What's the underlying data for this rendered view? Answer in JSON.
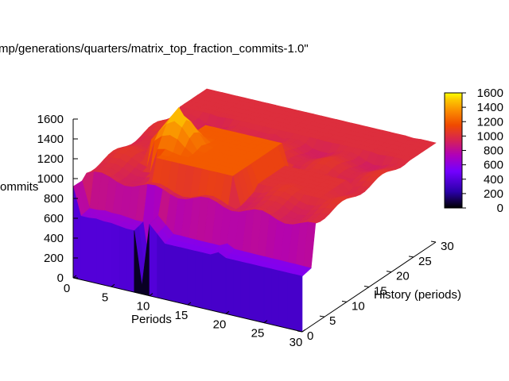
{
  "chart_data": {
    "type": "surface3d",
    "title": "mp/generations/quarters/matrix_top_fraction_commits-1.0\"",
    "xlabel": "Periods",
    "ylabel": "History (periods)",
    "zlabel": "ommits",
    "xlim": [
      0,
      30
    ],
    "ylim": [
      0,
      30
    ],
    "zlim": [
      0,
      1600
    ],
    "x_ticks": [
      "0",
      "5",
      "10",
      "15",
      "20",
      "25",
      "30"
    ],
    "y_ticks": [
      "0",
      "5",
      "10",
      "15",
      "20",
      "25",
      "30"
    ],
    "z_ticks": [
      "0",
      "200",
      "400",
      "600",
      "800",
      "1000",
      "1200",
      "1400",
      "1600"
    ],
    "colorbar": {
      "range": [
        0,
        1600
      ],
      "ticks": [
        "0",
        "200",
        "400",
        "600",
        "800",
        "1000",
        "1200",
        "1400",
        "1600"
      ],
      "palette": [
        "#000000",
        "#2a00a8",
        "#7400ff",
        "#b000b8",
        "#d4205a",
        "#f04a00",
        "#fa8a00",
        "#fcc800",
        "#ffff00"
      ]
    },
    "front_heights": [
      920,
      640,
      640,
      650,
      640,
      640,
      630,
      620,
      620,
      80,
      720,
      640,
      560,
      560,
      560,
      560,
      560,
      560,
      560,
      600,
      560,
      560,
      560,
      560,
      560,
      560,
      560,
      560,
      560,
      560,
      560
    ],
    "back_heights": [
      880,
      900,
      920,
      960,
      980,
      1000,
      1010,
      1010,
      1020,
      1040,
      1060,
      1080,
      1100,
      1120,
      1080,
      1060,
      1040,
      1040,
      1020,
      1020,
      1000,
      1000,
      980,
      960,
      960,
      940,
      940,
      920,
      920,
      900,
      880
    ],
    "peak": {
      "x": 8,
      "y": 10,
      "z": 1560
    },
    "plateau": {
      "x_range": [
        8,
        18
      ],
      "y_range": [
        5,
        16
      ],
      "z": 1200
    }
  }
}
